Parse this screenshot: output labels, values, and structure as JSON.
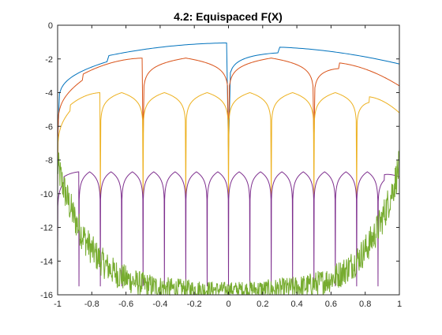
{
  "chart_data": {
    "type": "line",
    "title": "4.2: Equispaced F(X)",
    "xlabel": "",
    "ylabel": "",
    "xlim": [
      -1,
      1
    ],
    "ylim": [
      -16,
      0
    ],
    "xticks": [
      -1,
      -0.8,
      -0.6,
      -0.4,
      -0.2,
      0,
      0.2,
      0.4,
      0.6,
      0.8,
      1
    ],
    "xtick_labels": [
      "-1",
      "-0.8",
      "-0.6",
      "-0.4",
      "-0.2",
      "0",
      "0.2",
      "0.4",
      "0.6",
      "0.8",
      "1"
    ],
    "yticks": [
      0,
      -2,
      -4,
      -6,
      -8,
      -10,
      -12,
      -14,
      -16
    ],
    "ytick_labels": [
      "0",
      "-2",
      "-4",
      "-6",
      "-8",
      "-10",
      "-12",
      "-14",
      "-16"
    ],
    "grid": false,
    "series": [
      {
        "color": "#0072BD",
        "zeros": [
          0
        ],
        "peak": -1.05,
        "edge": -2.3,
        "depth": -7.5
      },
      {
        "color": "#D95319",
        "zeros": [
          -0.5,
          0,
          0.5
        ],
        "peak": -1.95,
        "edge": -3.6,
        "depth": -7.2
      },
      {
        "color": "#EDB120",
        "zeros": [
          -0.75,
          -0.5,
          -0.25,
          0,
          0.25,
          0.5,
          0.75
        ],
        "peak": -4.0,
        "edge": -5.2,
        "depth": -10.2
      },
      {
        "color": "#7E2F8E",
        "zeros": [
          -0.875,
          -0.75,
          -0.625,
          -0.5,
          -0.375,
          -0.25,
          -0.125,
          0,
          0.125,
          0.25,
          0.375,
          0.5,
          0.625,
          0.75,
          0.875
        ],
        "peak": -8.7,
        "edge": -9.0,
        "depth": -15.5
      },
      {
        "color": "#77AC30",
        "type": "noisy",
        "edge": -8.8,
        "floor": -15.6
      }
    ]
  }
}
